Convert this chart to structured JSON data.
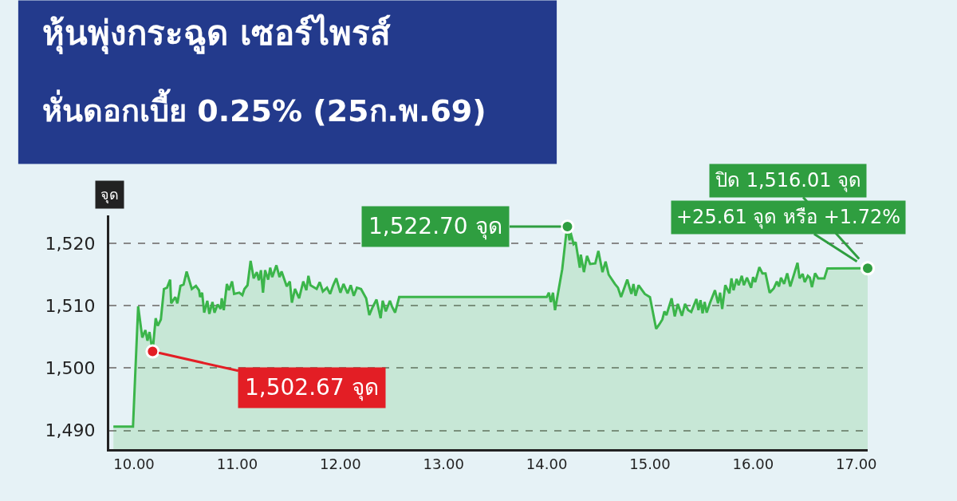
{
  "chart_data": {
    "type": "area",
    "title": "หุ้นพุ่งกระฉูด เซอร์ไพรส์",
    "subtitle": "หั่นดอกเบี้ย 0.25% (25ก.พ.69)",
    "ylabel": "จุด",
    "series": [
      {
        "color": "#3bb54a",
        "x": [
          9.8,
          9.99,
          10.04,
          10.08,
          10.11,
          10.13,
          10.15,
          10.18,
          10.21,
          10.23,
          10.26,
          10.29,
          10.32,
          10.35,
          10.36,
          10.4,
          10.42,
          10.45,
          10.48,
          10.51,
          10.56,
          10.6,
          10.63,
          10.64,
          10.66,
          10.68,
          10.71,
          10.73,
          10.76,
          10.78,
          10.81,
          10.84,
          10.85,
          10.87,
          10.9,
          10.92,
          10.95,
          10.97,
          11.02,
          11.05,
          11.07,
          11.1,
          11.13,
          11.16,
          11.19,
          11.21,
          11.23,
          11.25,
          11.27,
          11.3,
          11.32,
          11.34,
          11.38,
          11.41,
          11.43,
          11.48,
          11.51,
          11.53,
          11.56,
          11.6,
          11.64,
          11.67,
          11.69,
          11.71,
          11.77,
          11.8,
          11.83,
          11.87,
          11.9,
          11.93,
          11.96,
          12.0,
          12.03,
          12.07,
          12.1,
          12.13,
          12.16,
          12.2,
          12.25,
          12.28,
          12.31,
          12.35,
          12.39,
          12.41,
          12.44,
          12.48,
          12.5,
          12.53,
          12.57,
          14.0,
          14.02,
          14.04,
          14.06,
          14.08,
          14.15,
          14.19,
          14.2,
          14.22,
          14.23,
          14.26,
          14.28,
          14.32,
          14.33,
          14.36,
          14.39,
          14.42,
          14.47,
          14.5,
          14.54,
          14.57,
          14.6,
          14.66,
          14.69,
          14.72,
          14.78,
          14.82,
          14.84,
          14.86,
          14.89,
          14.95,
          15.0,
          15.06,
          15.09,
          15.12,
          15.14,
          15.16,
          15.21,
          15.24,
          15.27,
          15.31,
          15.34,
          15.37,
          15.4,
          15.45,
          15.47,
          15.49,
          15.51,
          15.53,
          15.55,
          15.58,
          15.63,
          15.66,
          15.68,
          15.7,
          15.73,
          15.77,
          15.79,
          15.81,
          15.84,
          15.86,
          15.89,
          15.91,
          15.94,
          15.98,
          16.0,
          16.02,
          16.06,
          16.09,
          16.12,
          16.16,
          16.2,
          16.23,
          16.25,
          16.27,
          16.3,
          16.33,
          16.36,
          16.43,
          16.45,
          16.48,
          16.5,
          16.53,
          16.55,
          16.57,
          16.6,
          16.63,
          16.69,
          16.72,
          17.11
        ],
        "values": [
          1490.6,
          1490.6,
          1509.9,
          1504.9,
          1506.1,
          1504.4,
          1505.8,
          1502.67,
          1508.0,
          1506.8,
          1507.8,
          1512.7,
          1512.9,
          1514.2,
          1510.4,
          1511.4,
          1510.4,
          1513.2,
          1513.4,
          1515.5,
          1512.7,
          1513.2,
          1512.5,
          1511.4,
          1512.1,
          1508.9,
          1510.8,
          1508.7,
          1510.6,
          1508.9,
          1510.2,
          1509.5,
          1511.2,
          1509.3,
          1513.5,
          1512.5,
          1513.9,
          1511.9,
          1512.1,
          1511.7,
          1512.7,
          1513.3,
          1517.2,
          1514.4,
          1515.4,
          1514.1,
          1515.7,
          1512.1,
          1515.7,
          1514.2,
          1516.1,
          1514.6,
          1516.5,
          1514.6,
          1515.5,
          1513.1,
          1513.9,
          1510.5,
          1512.7,
          1511.2,
          1513.9,
          1512.5,
          1514.8,
          1513.3,
          1512.7,
          1513.8,
          1512.3,
          1512.9,
          1511.9,
          1513.3,
          1514.4,
          1512.1,
          1513.5,
          1512.0,
          1513.3,
          1511.6,
          1512.9,
          1512.7,
          1511.2,
          1508.5,
          1509.7,
          1511.0,
          1508.0,
          1510.8,
          1509.1,
          1510.8,
          1509.9,
          1508.9,
          1511.4,
          1511.4,
          1512.1,
          1510.6,
          1512.1,
          1509.3,
          1515.9,
          1521.8,
          1522.7,
          1520.5,
          1521.8,
          1519.9,
          1520.2,
          1516.1,
          1518.2,
          1515.4,
          1518.0,
          1516.7,
          1516.8,
          1518.8,
          1515.4,
          1517.1,
          1515.0,
          1513.5,
          1512.9,
          1511.4,
          1514.2,
          1511.9,
          1513.5,
          1511.6,
          1513.3,
          1511.9,
          1511.4,
          1506.3,
          1507.0,
          1507.8,
          1509.1,
          1508.5,
          1511.2,
          1508.3,
          1510.3,
          1508.4,
          1510.3,
          1509.3,
          1509.0,
          1511.1,
          1509.3,
          1510.9,
          1508.8,
          1510.6,
          1508.9,
          1510.4,
          1512.5,
          1510.4,
          1512.1,
          1509.5,
          1513.3,
          1512.0,
          1514.4,
          1512.5,
          1514.3,
          1513.3,
          1514.8,
          1513.3,
          1514.5,
          1512.9,
          1514.6,
          1513.8,
          1516.2,
          1515.2,
          1515.2,
          1512.1,
          1512.8,
          1513.9,
          1513.1,
          1514.5,
          1513.5,
          1515.2,
          1513.1,
          1516.9,
          1514.4,
          1515.1,
          1513.8,
          1514.8,
          1514.5,
          1513.0,
          1515.2,
          1514.4,
          1514.4,
          1516.0,
          1516.01
        ]
      }
    ],
    "xlim": [
      9.76,
      17.11
    ],
    "xticks": [
      {
        "value": 10,
        "label": "10.00"
      },
      {
        "value": 11,
        "label": "11.00"
      },
      {
        "value": 12,
        "label": "12.00"
      },
      {
        "value": 13,
        "label": "13.00"
      },
      {
        "value": 14,
        "label": "14.00"
      },
      {
        "value": 15,
        "label": "15.00"
      },
      {
        "value": 16,
        "label": "16.00"
      },
      {
        "value": 17,
        "label": "17.00"
      }
    ],
    "ylim": [
      1487,
      1524.5
    ],
    "yticks": [
      {
        "value": 1490,
        "label": "1,490"
      },
      {
        "value": 1500,
        "label": "1,500"
      },
      {
        "value": 1510,
        "label": "1,510"
      },
      {
        "value": 1520,
        "label": "1,520"
      }
    ],
    "grid": "y",
    "legend": false,
    "marker": "none",
    "line_style": "solid",
    "annotations": [
      {
        "text": "1,502.67 จุด",
        "x": 10.18,
        "y": 1502.67
      },
      {
        "text": "1,522.70 จุด",
        "x": 14.2,
        "y": 1522.7
      },
      {
        "text": "ปิด 1,516.01 จุด",
        "x": 17.11,
        "y": 1516.01
      },
      {
        "text": "+25.61 จุด หรือ +1.72%",
        "x": 17.11,
        "y": 1516.01
      }
    ]
  }
}
